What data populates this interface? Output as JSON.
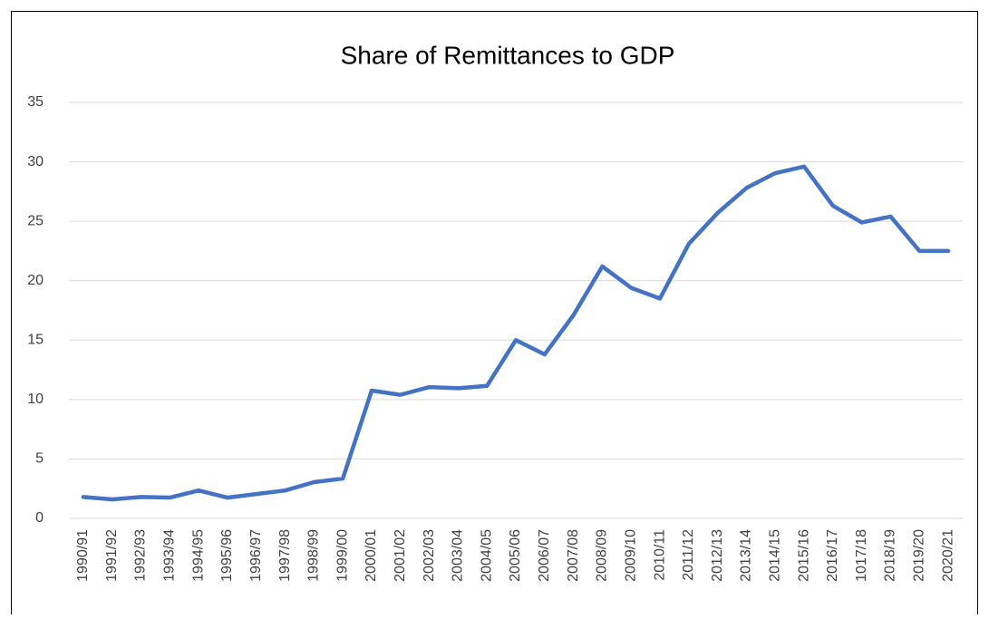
{
  "chart_data": {
    "type": "line",
    "title": "Share of Remittances to GDP",
    "categories": [
      "1990/91",
      "1991/92",
      "1992/93",
      "1993/94",
      "1994/95",
      "1995/96",
      "1996/97",
      "1997/98",
      "1998/99",
      "1999/00",
      "2000/01",
      "2001/02",
      "2002/03",
      "2003/04",
      "2004/05",
      "2005/06",
      "2006/07",
      "2007/08",
      "2008/09",
      "2009/10",
      "2010/11",
      "2011/12",
      "2012/13",
      "2013/14",
      "2014/15",
      "2015/16",
      "2016/17",
      "1017/18",
      "2018/19",
      "2019/20",
      "2020/21"
    ],
    "values": [
      1.8,
      1.6,
      1.8,
      1.75,
      2.35,
      1.75,
      2.05,
      2.35,
      3.05,
      3.35,
      10.75,
      10.4,
      11.05,
      10.95,
      11.15,
      15.0,
      13.8,
      17.1,
      21.2,
      19.4,
      18.5,
      23.1,
      25.7,
      27.8,
      29.05,
      29.6,
      26.3,
      24.9,
      25.4,
      22.5,
      22.5
    ],
    "color": "#4472c4",
    "ylim": [
      0,
      35
    ],
    "yticks": [
      0,
      5,
      10,
      15,
      20,
      25,
      30,
      35
    ],
    "grid": true
  }
}
